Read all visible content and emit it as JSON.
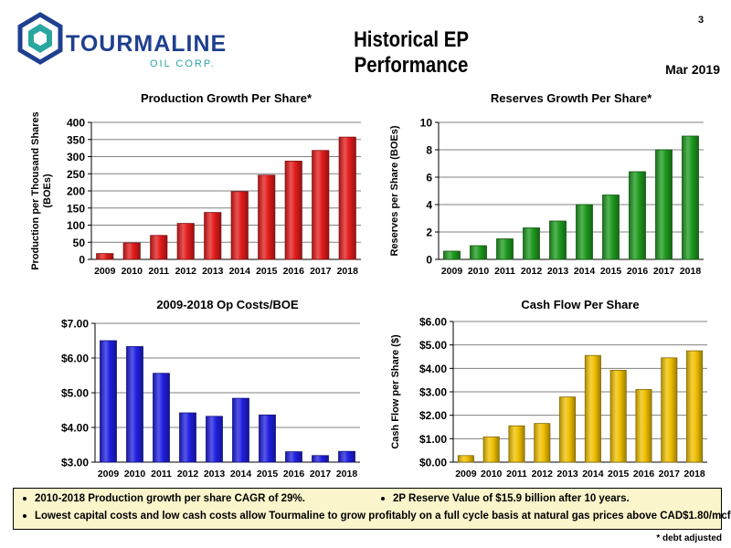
{
  "header": {
    "logo_name": "TOURMALINE",
    "logo_sub": "OIL CORP.",
    "title": "Historical EP Performance",
    "page_number": "3",
    "date": "Mar 2019",
    "colors": {
      "brand_blue": "#1f3f8f",
      "brand_teal": "#2aa6a0"
    }
  },
  "chart_data": [
    {
      "type": "bar",
      "title": "Production Growth Per Share*",
      "ylabel": "Production per Thousand Shares (BOEs)",
      "categories": [
        "2009",
        "2010",
        "2011",
        "2012",
        "2013",
        "2014",
        "2015",
        "2016",
        "2017",
        "2018"
      ],
      "values": [
        17,
        48,
        70,
        105,
        137,
        198,
        246,
        287,
        318,
        357
      ],
      "ylim": [
        0,
        400
      ],
      "yticks": [
        0,
        50,
        100,
        150,
        200,
        250,
        300,
        350,
        400
      ],
      "ytick_labels": [
        "0",
        "50",
        "100",
        "150",
        "200",
        "250",
        "300",
        "350",
        "400"
      ],
      "grid": true,
      "color": "#e31b1b"
    },
    {
      "type": "bar",
      "title": "Reserves Growth Per Share*",
      "ylabel": "Reserves per Share (BOEs)",
      "categories": [
        "2009",
        "2010",
        "2011",
        "2012",
        "2013",
        "2014",
        "2015",
        "2016",
        "2017",
        "2018"
      ],
      "values": [
        0.6,
        1.0,
        1.5,
        2.3,
        2.8,
        4.0,
        4.7,
        6.4,
        8.0,
        9.0
      ],
      "ylim": [
        0,
        10
      ],
      "yticks": [
        0,
        2,
        4,
        6,
        8,
        10
      ],
      "ytick_labels": [
        "0",
        "2",
        "4",
        "6",
        "8",
        "10"
      ],
      "grid": true,
      "color": "#1e9a1e"
    },
    {
      "type": "bar",
      "title": "2009-2018 Op Costs/BOE",
      "ylabel": "",
      "categories": [
        "2009",
        "2010",
        "2011",
        "2012",
        "2013",
        "2014",
        "2015",
        "2016",
        "2017",
        "2018"
      ],
      "values": [
        6.5,
        6.33,
        5.56,
        4.42,
        4.32,
        4.84,
        4.36,
        3.3,
        3.19,
        3.31
      ],
      "ylim": [
        3.0,
        7.0
      ],
      "yticks": [
        3,
        4,
        5,
        6,
        7
      ],
      "ytick_labels": [
        "$3.00",
        "$4.00",
        "$5.00",
        "$6.00",
        "$7.00"
      ],
      "grid": true,
      "color": "#1f1fe0"
    },
    {
      "type": "bar",
      "title": "Cash Flow Per Share",
      "ylabel": "Cash Flow per Share ($)",
      "categories": [
        "2009",
        "2010",
        "2011",
        "2012",
        "2013",
        "2014",
        "2015",
        "2016",
        "2017",
        "2018"
      ],
      "values": [
        0.28,
        1.08,
        1.55,
        1.65,
        2.78,
        4.55,
        3.92,
        3.1,
        4.45,
        4.75
      ],
      "ylim": [
        0,
        6
      ],
      "yticks": [
        0,
        1,
        2,
        3,
        4,
        5,
        6
      ],
      "ytick_labels": [
        "$0.00",
        "$1.00",
        "$2.00",
        "$3.00",
        "$4.00",
        "$5.00",
        "$6.00"
      ],
      "grid": true,
      "color": "#f0c000"
    }
  ],
  "notes": {
    "bullet1": "2010-2018 Production growth per share CAGR of 29%.",
    "bullet2": "2P Reserve Value of $15.9 billion after 10 years.",
    "bullet3": "Lowest capital costs and low cash costs allow Tourmaline to grow profitably on a full cycle basis at natural gas prices above CAD$1.80/mcf.",
    "footnote": "* debt adjusted"
  }
}
